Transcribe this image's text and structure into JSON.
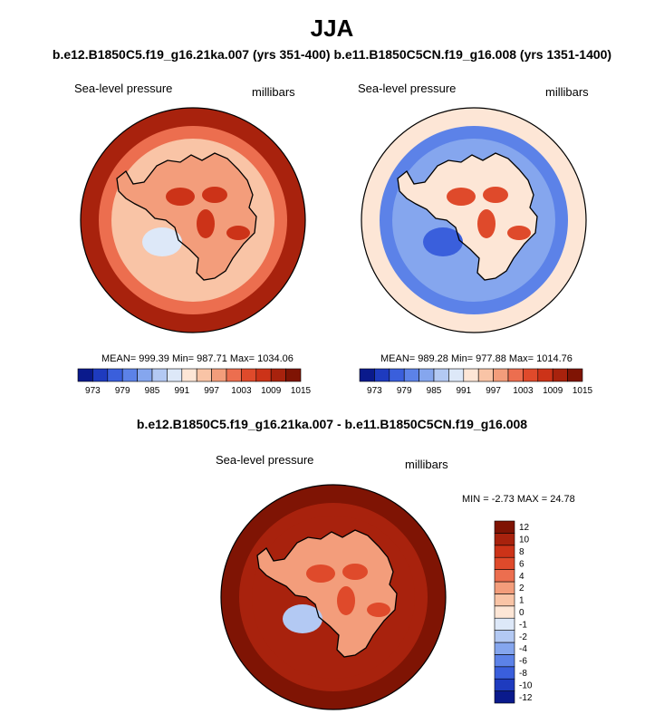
{
  "title": "JJA",
  "subtitle": "b.e12.B1850C5.f19_g16.21ka.007 (yrs 351-400)  b.e11.B1850C5CN.f19_g16.008 (yrs 1351-1400)",
  "diff_title": "b.e12.B1850C5.f19_g16.21ka.007 - b.e11.B1850C5CN.f19_g16.008",
  "palette": {
    "abs": [
      "#0a1a8c",
      "#1e3bbf",
      "#3a5fdc",
      "#5c82e8",
      "#85a6ee",
      "#b3c9f3",
      "#dde8f8",
      "#fde6d6",
      "#f9c4a6",
      "#f39d7b",
      "#ec6e4f",
      "#df4a2b",
      "#cc3318",
      "#a8220d",
      "#7f1404"
    ],
    "diff": [
      "#0a1a8c",
      "#1e3bbf",
      "#3a5fdc",
      "#5c82e8",
      "#85a6ee",
      "#b3c9f3",
      "#dde8f8",
      "#fde6d6",
      "#f9c4a6",
      "#f39d7b",
      "#ec6e4f",
      "#df4a2b",
      "#cc3318",
      "#a8220d",
      "#7f1404"
    ]
  },
  "chart_data": [
    {
      "type": "heatmap",
      "title": "Sea-level pressure",
      "units": "millibars",
      "case": "b.e12.B1850C5.f19_g16.21ka.007 (yrs 351-400)",
      "stats": {
        "mean": 999.39,
        "min": 987.71,
        "max": 1034.06
      },
      "stats_text": "MEAN= 999.39  Min= 987.71  Max= 1034.06",
      "levels": [
        973,
        976,
        979,
        982,
        985,
        988,
        991,
        994,
        997,
        1000,
        1003,
        1006,
        1009,
        1012,
        1015
      ],
      "colorbar_tick_labels": [
        "973",
        "979",
        "985",
        "991",
        "997",
        "1003",
        "1009",
        "1015"
      ],
      "projection": "south polar stereographic",
      "field_levels": {
        "outer_ring": 1012,
        "mid_ring": 1003,
        "inner_ring": 997,
        "interior": 1000,
        "low_patch": 991,
        "highs": 1009
      }
    },
    {
      "type": "heatmap",
      "title": "Sea-level pressure",
      "units": "millibars",
      "case": "b.e11.B1850C5CN.f19_g16.008 (yrs 1351-1400)",
      "stats": {
        "mean": 989.28,
        "min": 977.88,
        "max": 1014.76
      },
      "stats_text": "MEAN= 989.28  Min= 977.88  Max= 1014.76",
      "levels": [
        973,
        976,
        979,
        982,
        985,
        988,
        991,
        994,
        997,
        1000,
        1003,
        1006,
        1009,
        1012,
        1015
      ],
      "colorbar_tick_labels": [
        "973",
        "979",
        "985",
        "991",
        "997",
        "1003",
        "1009",
        "1015"
      ],
      "projection": "south polar stereographic",
      "field_levels": {
        "outer_ring": 994,
        "mid_ring": 982,
        "inner_ring": 985,
        "interior": 994,
        "low_patch": 979,
        "highs": 1006
      }
    },
    {
      "type": "heatmap",
      "title": "Sea-level pressure",
      "units": "millibars",
      "case": "b.e12.B1850C5.f19_g16.21ka.007 - b.e11.B1850C5CN.f19_g16.008",
      "stats": {
        "min": -2.73,
        "max": 24.78
      },
      "stats_text": "MIN =  -2.73 MAX =  24.78",
      "levels": [
        -12,
        -10,
        -8,
        -6,
        -4,
        -2,
        -1,
        0,
        1,
        2,
        4,
        6,
        8,
        10,
        12
      ],
      "colorbar_tick_labels": [
        "-12",
        "-10",
        "-8",
        "-6",
        "-4",
        "-2",
        "-1",
        "0",
        "1",
        "2",
        "4",
        "6",
        "8",
        "10",
        "12"
      ],
      "projection": "south polar stereographic",
      "field_levels": {
        "outer_ring": 12,
        "mid_ring": 10,
        "inner_ring": 10,
        "interior": 2,
        "low_patch": -2,
        "highs": 6
      }
    }
  ]
}
